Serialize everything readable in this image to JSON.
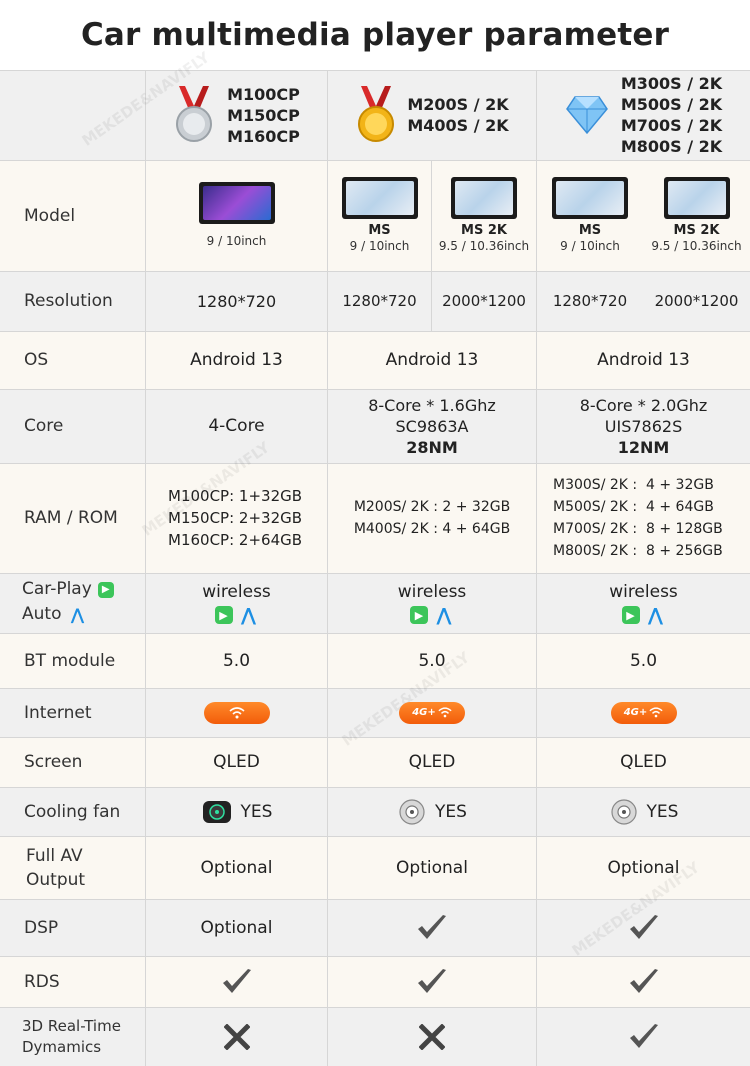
{
  "title": "Car multimedia player parameter",
  "watermark": "MEKEDE&NAVIFLY",
  "header": {
    "col1": [
      "M100CP",
      "M150CP",
      "M160CP"
    ],
    "col2": [
      "M200S / 2K",
      "M400S / 2K"
    ],
    "col3": [
      "M300S / 2K",
      "M500S / 2K",
      "M700S / 2K",
      "M800S / 2K"
    ],
    "col1_icon": "silver-medal-icon",
    "col2_icon": "gold-medal-icon",
    "col3_icon": "diamond-icon"
  },
  "labels": {
    "model": "Model",
    "resolution": "Resolution",
    "os": "OS",
    "core": "Core",
    "ram": "RAM / ROM",
    "carplay": "Car-Play",
    "auto": "Auto",
    "bt": "BT module",
    "internet": "Internet",
    "screen": "Screen",
    "fan": "Cooling fan",
    "av1": "Full AV",
    "av2": "Output",
    "dsp": "DSP",
    "rds": "RDS",
    "rt1": "3D Real-Time",
    "rt2": "Dymamics"
  },
  "model": {
    "c1_size": "9 / 10inch",
    "c2a_name": "MS",
    "c2a_size": "9 / 10inch",
    "c2b_name": "MS 2K",
    "c2b_size": "9.5 / 10.36inch",
    "c3a_name": "MS",
    "c3a_size": "9 / 10inch",
    "c3b_name": "MS 2K",
    "c3b_size": "9.5 / 10.36inch"
  },
  "resolution": {
    "c1": "1280*720",
    "c2a": "1280*720",
    "c2b": "2000*1200",
    "c3a": "1280*720",
    "c3b": "2000*1200"
  },
  "os": {
    "c1": "Android 13",
    "c2": "Android 13",
    "c3": "Android 13"
  },
  "core": {
    "c1": "4-Core",
    "c2": [
      "8-Core * 1.6Ghz",
      "SC9863A",
      "28NM"
    ],
    "c3": [
      "8-Core * 2.0Ghz",
      "UIS7862S",
      "12NM"
    ]
  },
  "ram": {
    "c1": [
      "M100CP: 1+32GB",
      "M150CP: 2+32GB",
      "M160CP: 2+64GB"
    ],
    "c2": [
      "M200S/ 2K : 2 + 32GB",
      "M400S/ 2K : 4 + 64GB"
    ],
    "c3": [
      "M300S/ 2K :  4 + 32GB",
      "M500S/ 2K :  4 + 64GB",
      "M700S/ 2K :  8 + 128GB",
      "M800S/ 2K :  8 + 256GB"
    ]
  },
  "carplay": {
    "c1": "wireless",
    "c2": "wireless",
    "c3": "wireless"
  },
  "bt": {
    "c1": "5.0",
    "c2": "5.0",
    "c3": "5.0"
  },
  "internet": {
    "c1_icon": "wifi-icon",
    "c2": "4G+",
    "c3": "4G+"
  },
  "screen": {
    "c1": "QLED",
    "c2": "QLED",
    "c3": "QLED"
  },
  "fan": {
    "c1": "YES",
    "c2": "YES",
    "c3": "YES"
  },
  "av": {
    "c1": "Optional",
    "c2": "Optional",
    "c3": "Optional"
  },
  "dsp": {
    "c1": "Optional",
    "c2_icon": "check-icon",
    "c3_icon": "check-icon"
  },
  "rds": {
    "c1_icon": "check-icon",
    "c2_icon": "check-icon",
    "c3_icon": "check-icon"
  },
  "rt": {
    "c1_icon": "cross-icon",
    "c2_icon": "cross-icon",
    "c3_icon": "check-icon"
  },
  "colors": {
    "accent_orange": "#f25c0a",
    "carplay_green": "#3cc55a",
    "auto_blue": "#1d8fe3",
    "row_shade": "#f0f0f0",
    "row_light": "#fbf8f2"
  }
}
